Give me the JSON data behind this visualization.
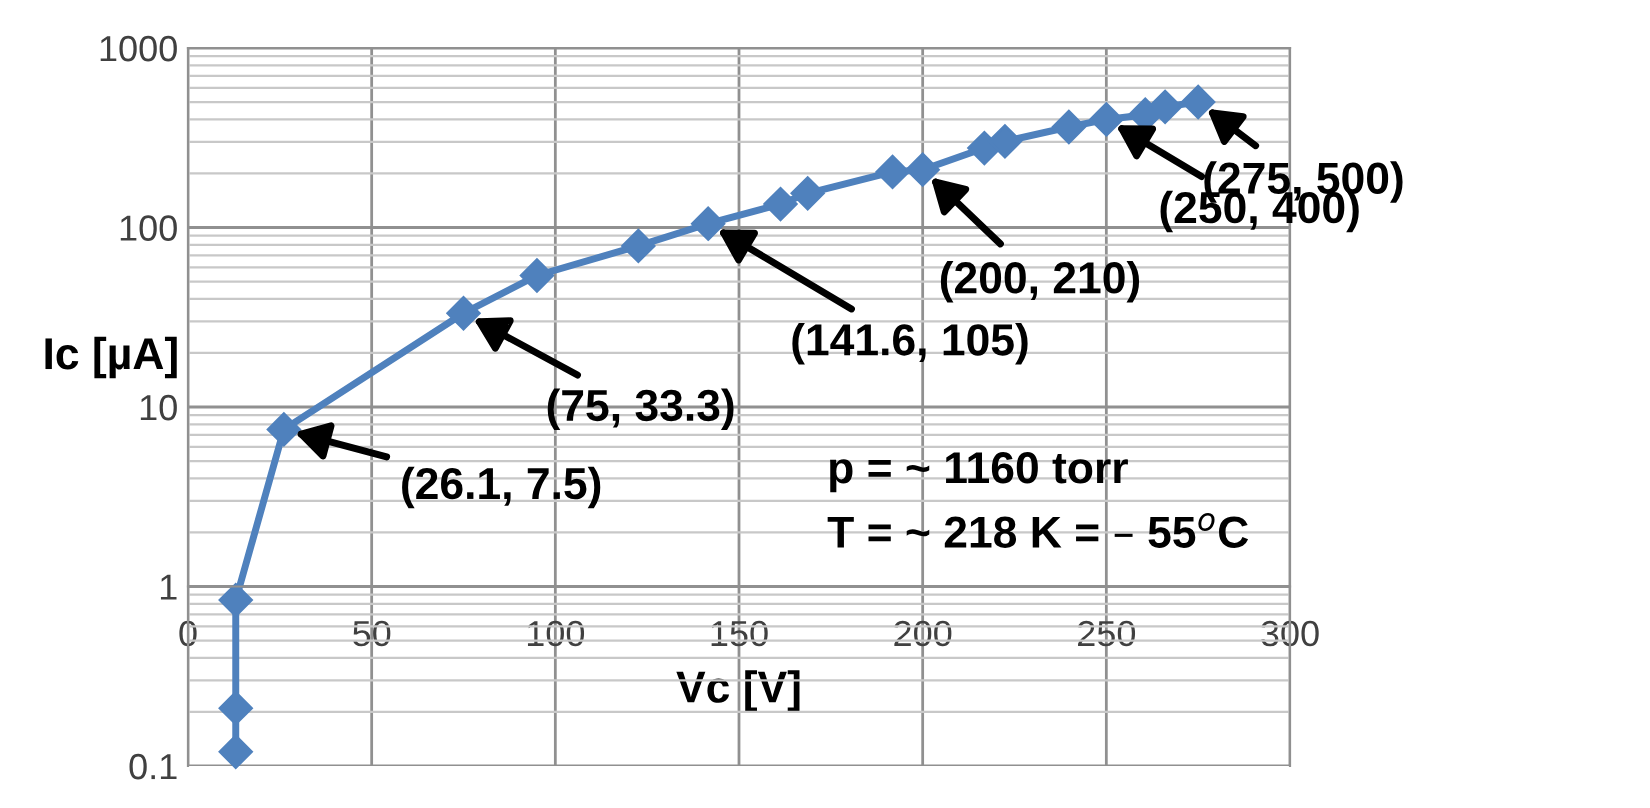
{
  "chart_data": {
    "type": "line",
    "xlabel": "Vc [V]",
    "ylabel": "Ic [µA]",
    "log": "y",
    "xlim": [
      0,
      300
    ],
    "xticks": [
      0,
      50,
      100,
      150,
      200,
      250,
      300
    ],
    "ylim": [
      0.1,
      1000
    ],
    "yticks": [
      0.1,
      1,
      10,
      100,
      1000
    ],
    "grid": true,
    "marker": "diamond",
    "line_style": "solid",
    "series": [
      {
        "color": "#4f81bd",
        "x": [
          13,
          13,
          13,
          26.1,
          75,
          95,
          122.6,
          141.6,
          161.3,
          168.7,
          191.8,
          200,
          216.8,
          222.4,
          239.8,
          250,
          260.6,
          266,
          275
        ],
        "values": [
          0.12,
          0.21,
          0.84,
          7.5,
          33.3,
          54,
          79,
          105,
          135,
          155,
          204,
          210,
          277,
          302,
          363,
          400,
          425,
          470,
          500
        ]
      }
    ],
    "annotations": [
      {
        "text": "(26.1, 7.5)",
        "x": 26.1,
        "y": 7.5
      },
      {
        "text": "(75, 33.3)",
        "x": 75,
        "y": 33.3
      },
      {
        "text": "(141.6, 105)",
        "x": 141.6,
        "y": 105
      },
      {
        "text": "(200, 210)",
        "x": 200,
        "y": 210
      },
      {
        "text": "(250, 400)",
        "x": 250,
        "y": 400
      },
      {
        "text": "(275, 500)",
        "x": 275,
        "y": 500
      },
      "p = ~ 1160 torr",
      "T = ~ 218 K = – 55$^{o}$C"
    ]
  }
}
